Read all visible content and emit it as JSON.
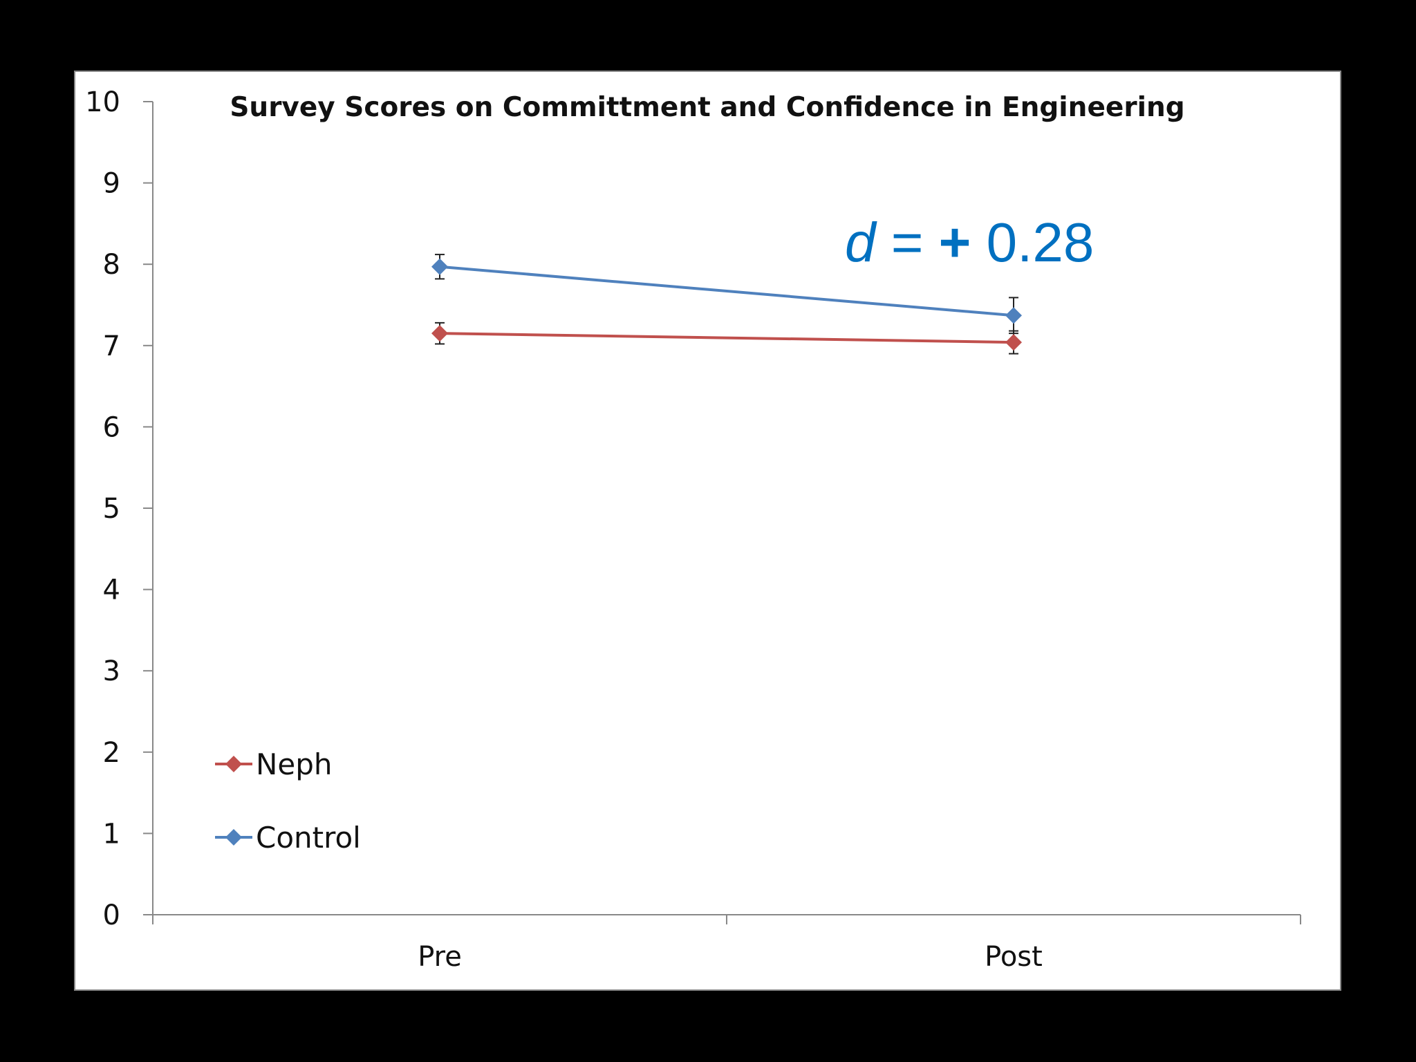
{
  "chart_data": {
    "type": "line",
    "title": "Survey Scores on Committment and Confidence in Engineering",
    "xlabel": "",
    "ylabel": "",
    "categories": [
      "Pre",
      "Post"
    ],
    "ylim": [
      0,
      10
    ],
    "yticks": [
      "0",
      "1",
      "2",
      "3",
      "4",
      "5",
      "6",
      "7",
      "8",
      "9",
      "10"
    ],
    "grid": false,
    "legend_position": "bottom-left",
    "series": [
      {
        "name": "Neph",
        "color": "#c0504d",
        "marker": "diamond",
        "values": [
          7.15,
          7.04
        ],
        "errors": [
          0.13,
          0.14
        ]
      },
      {
        "name": "Control",
        "color": "#4f81bd",
        "marker": "diamond",
        "values": [
          7.97,
          7.37
        ],
        "errors": [
          0.15,
          0.22
        ]
      }
    ],
    "annotations": [
      {
        "text_italic": "d",
        "text_equals": " = ",
        "text_sign": "+",
        "text_value": " 0.28",
        "color": "#0070c0"
      }
    ]
  }
}
